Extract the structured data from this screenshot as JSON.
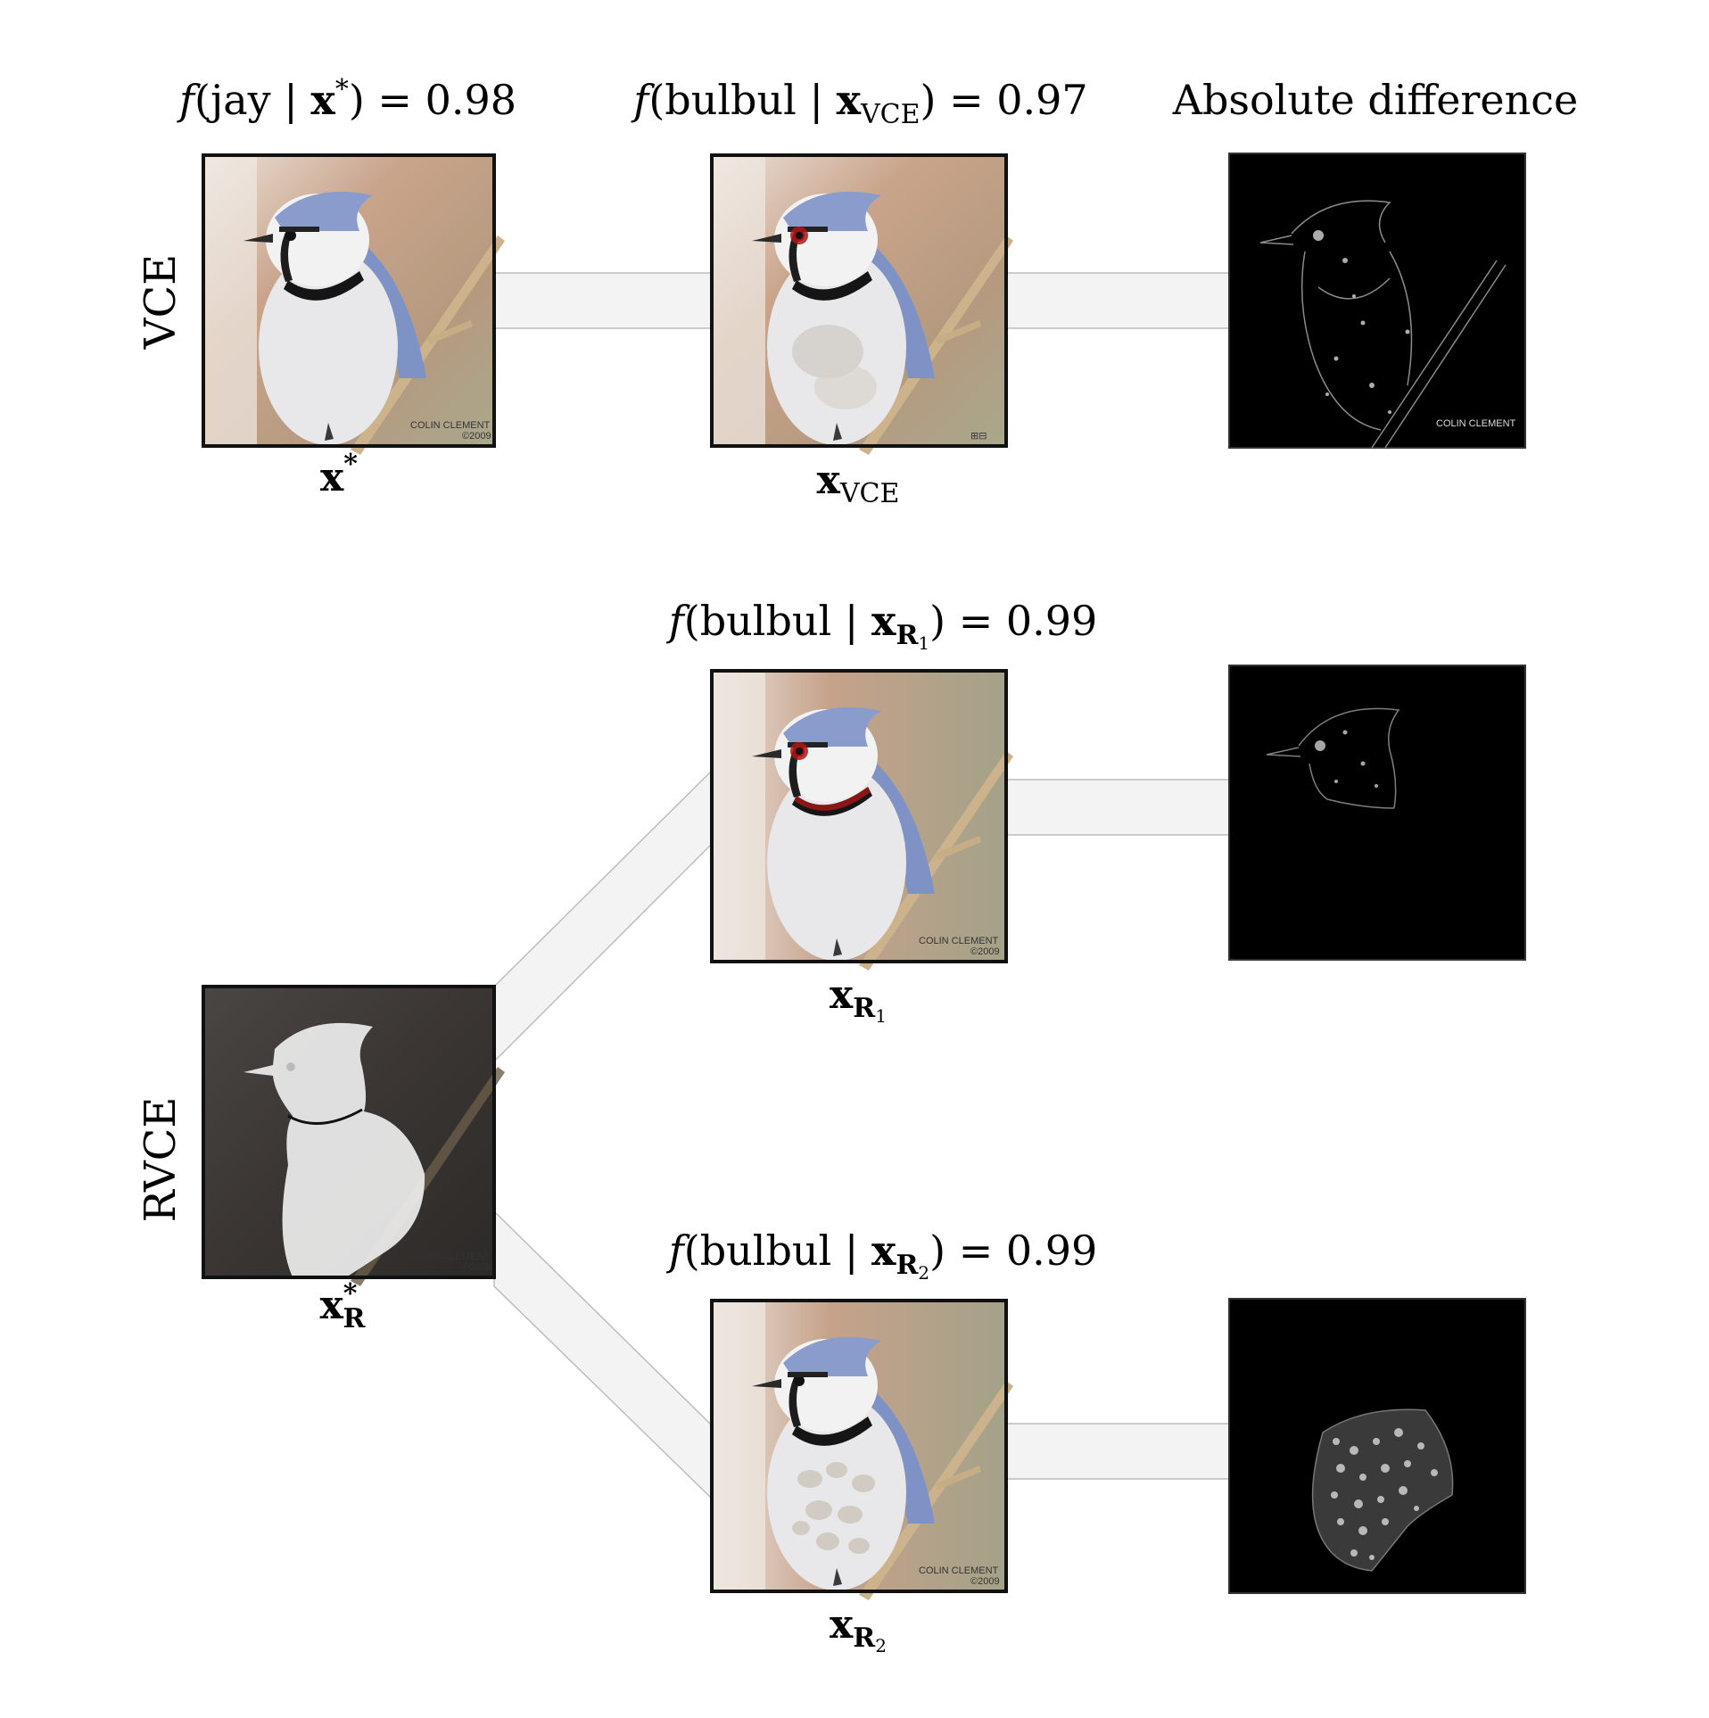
{
  "rows": {
    "vce_label": "VCE",
    "rvce_label": "RVCE"
  },
  "titles": {
    "vce_original": {
      "pre": "f",
      "open": "(jay | ",
      "x": "x",
      "sup": "*",
      "close": ") = 0.98"
    },
    "vce_counterfactual": {
      "pre": "f",
      "open": "(bulbul | ",
      "x": "x",
      "sub": "VCE",
      "close": ") = 0.97"
    },
    "diff_header": "Absolute difference",
    "rvce_r1": {
      "pre": "f",
      "open": "(bulbul | ",
      "x": "x",
      "sub": "R",
      "subsub": "1",
      "close": ") = 0.99"
    },
    "rvce_r2": {
      "pre": "f",
      "open": "(bulbul | ",
      "x": "x",
      "sub": "R",
      "subsub": "2",
      "close": ") = 0.99"
    }
  },
  "captions": {
    "x_star": {
      "x": "x",
      "sup": "*"
    },
    "x_vce": {
      "x": "x",
      "sub": "VCE"
    },
    "x_r1": {
      "x": "x",
      "sub": "R",
      "subsub": "1"
    },
    "x_r_star": {
      "x": "x",
      "sup": "*",
      "sub": "R"
    },
    "x_r2": {
      "x": "x",
      "sub": "R",
      "subsub": "2"
    }
  },
  "photo_credit": {
    "line1": "COLIN CLEMENT",
    "line2": "©2009"
  },
  "colors": {
    "bird_blue": "#8a9ccc",
    "bird_white": "#e6e6e6",
    "necklace": "#151515",
    "eye_red": "#b01515",
    "branch": "#cdb38c",
    "bg_warm": "#c8a48a",
    "bg_green": "#a6a58a",
    "connector": "#f3f3f3"
  }
}
